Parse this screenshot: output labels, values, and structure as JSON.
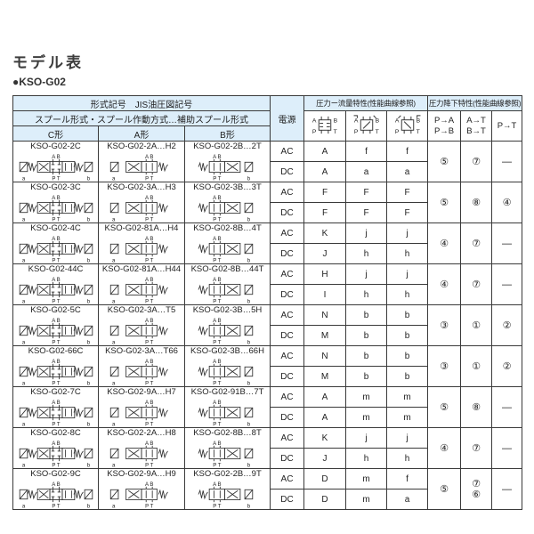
{
  "page": {
    "title": "モデル表",
    "subtitle": "●KSO-G02"
  },
  "table": {
    "header": {
      "left_title": "形式記号　JIS油圧図記号",
      "left_subtitle": "スプール形式・スプール作動方式…補助スプール形式",
      "col_c": "C形",
      "col_a": "A形",
      "col_b": "B形",
      "power": "電源",
      "flow_title": "圧力ー流量特性(性能曲線参照)",
      "drop_title": "圧力降下特性(性能曲線参照)",
      "drop_col_1": "P→A\nP→B",
      "drop_col_2": "A→T\nB→T",
      "drop_col_3": "P→T"
    },
    "labels": {
      "power_ac": "AC",
      "power_dc": "DC"
    },
    "diagram_labels": {
      "top": "A B",
      "bottom": "P T",
      "a": "a",
      "b": "b",
      "portA": "A",
      "portB": "B",
      "portP": "P",
      "portT": "T"
    },
    "rows": [
      {
        "model_c": "KSO-G02-2C",
        "model_a": "KSO-G02-2A…H2",
        "model_b": "KSO-G02-2B…2T",
        "ac": [
          "A",
          "f",
          "f"
        ],
        "dc": [
          "A",
          "a",
          "a"
        ],
        "drops": [
          "⑤",
          "⑦",
          "—"
        ]
      },
      {
        "model_c": "KSO-G02-3C",
        "model_a": "KSO-G02-3A…H3",
        "model_b": "KSO-G02-3B…3T",
        "ac": [
          "F",
          "F",
          "F"
        ],
        "dc": [
          "F",
          "F",
          "F"
        ],
        "drops": [
          "⑤",
          "⑧",
          "④"
        ]
      },
      {
        "model_c": "KSO-G02-4C",
        "model_a": "KSO-G02-81A…H4",
        "model_b": "KSO-G02-8B…4T",
        "ac": [
          "K",
          "j",
          "j"
        ],
        "dc": [
          "J",
          "h",
          "h"
        ],
        "drops": [
          "④",
          "⑦",
          "—"
        ]
      },
      {
        "model_c": "KSO-G02-44C",
        "model_a": "KSO-G02-81A…H44",
        "model_b": "KSO-G02-8B…44T",
        "ac": [
          "H",
          "j",
          "j"
        ],
        "dc": [
          "I",
          "h",
          "h"
        ],
        "drops": [
          "④",
          "⑦",
          "—"
        ]
      },
      {
        "model_c": "KSO-G02-5C",
        "model_a": "KSO-G02-3A…T5",
        "model_b": "KSO-G02-3B…5H",
        "ac": [
          "N",
          "b",
          "b"
        ],
        "dc": [
          "M",
          "b",
          "b"
        ],
        "drops": [
          "③",
          "①",
          "②"
        ]
      },
      {
        "model_c": "KSO-G02-66C",
        "model_a": "KSO-G02-3A…T66",
        "model_b": "KSO-G02-3B…66H",
        "ac": [
          "N",
          "b",
          "b"
        ],
        "dc": [
          "M",
          "b",
          "b"
        ],
        "drops": [
          "③",
          "①",
          "②"
        ]
      },
      {
        "model_c": "KSO-G02-7C",
        "model_a": "KSO-G02-9A…H7",
        "model_b": "KSO-G02-91B…7T",
        "ac": [
          "A",
          "m",
          "m"
        ],
        "dc": [
          "A",
          "m",
          "m"
        ],
        "drops": [
          "⑤",
          "⑧",
          "—"
        ]
      },
      {
        "model_c": "KSO-G02-8C",
        "model_a": "KSO-G02-2A…H8",
        "model_b": "KSO-G02-8B…8T",
        "ac": [
          "K",
          "j",
          "j"
        ],
        "dc": [
          "J",
          "h",
          "h"
        ],
        "drops": [
          "④",
          "⑦",
          "—"
        ]
      },
      {
        "model_c": "KSO-G02-9C",
        "model_a": "KSO-G02-9A…H9",
        "model_b": "KSO-G02-2B…9T",
        "ac": [
          "D",
          "m",
          "f"
        ],
        "dc": [
          "D",
          "m",
          "a"
        ],
        "drops": [
          "⑤",
          "⑦\n⑥",
          "—"
        ]
      }
    ],
    "colors": {
      "header_bg": "#ddeefa",
      "grid": "#3a3a3a",
      "sub_grid": "#9a9a9a"
    }
  }
}
